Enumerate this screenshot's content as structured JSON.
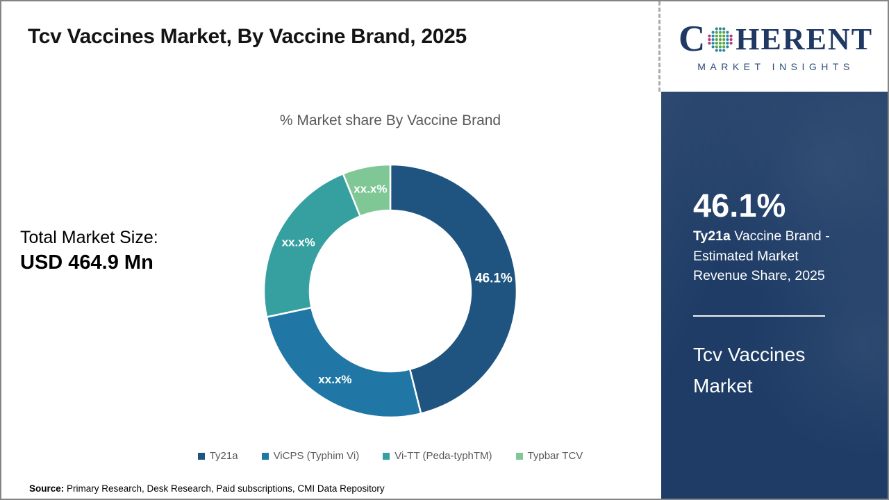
{
  "page": {
    "title": "Tcv Vaccines Market, By Vaccine Brand, 2025"
  },
  "logo": {
    "letter_c": "C",
    "letters_rest": "HERENT",
    "tagline": "MARKET INSIGHTS",
    "brand_color": "#1F3864"
  },
  "total_market": {
    "label": "Total Market Size:",
    "value": "USD 464.9 Mn"
  },
  "chart_data": {
    "type": "pie",
    "subtype": "donut",
    "title": "% Market share By Vaccine Brand",
    "categories": [
      "Ty21a",
      "ViCPS (Typhim Vi)",
      "Vi-TT (Peda-typhTM)",
      "Typbar TCV"
    ],
    "values": [
      46.1,
      25.6,
      22.2,
      6.1
    ],
    "slice_labels": [
      "46.1%",
      "xx.x%",
      "xx.x%",
      "xx.x%"
    ],
    "colors": [
      "#1F5480",
      "#2077A5",
      "#36A0A0",
      "#7FC795"
    ],
    "label_color": "#FFFFFF",
    "legend_position": "bottom"
  },
  "sidebar": {
    "bg_color": "#1E3C66",
    "stat_value": "46.1%",
    "desc_bold": "Ty21a",
    "desc_line1_rest": " Vaccine Brand -",
    "desc_line2": "Estimated Market",
    "desc_line3": "Revenue Share, 2025",
    "market_name": "Tcv Vaccines Market"
  },
  "footer": {
    "source_label": "Source:",
    "source_text": " Primary Research, Desk Research, Paid subscriptions, CMI Data Repository"
  }
}
